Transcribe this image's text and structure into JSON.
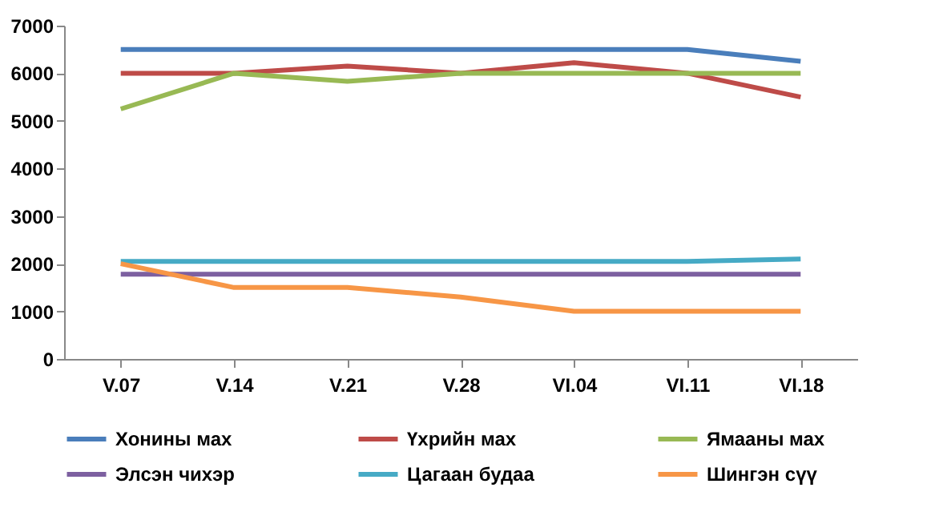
{
  "chart_data": {
    "type": "line",
    "categories": [
      "V.07",
      "V.14",
      "V.21",
      "V.28",
      "VI.04",
      "VI.11",
      "VI.18"
    ],
    "series": [
      {
        "name": "Хонины мах",
        "color": "#4a7ebb",
        "values": [
          6500,
          6500,
          6500,
          6500,
          6500,
          6500,
          6250
        ]
      },
      {
        "name": "Үхрийн мах",
        "color": "#be4b48",
        "values": [
          6000,
          6000,
          6150,
          6000,
          6220,
          6000,
          5500
        ]
      },
      {
        "name": "Ямааны мах",
        "color": "#98b954",
        "values": [
          5250,
          6000,
          5830,
          6000,
          6000,
          6000,
          6000
        ]
      },
      {
        "name": "Элсэн чихэр",
        "color": "#7d60a0",
        "values": [
          1780,
          1780,
          1780,
          1780,
          1780,
          1780,
          1780
        ]
      },
      {
        "name": "Цагаан будаа",
        "color": "#46aac5",
        "values": [
          2050,
          2050,
          2050,
          2050,
          2050,
          2050,
          2100
        ]
      },
      {
        "name": "Шингэн сүү",
        "color": "#f79646",
        "values": [
          2000,
          1500,
          1500,
          1300,
          1000,
          1000,
          1000
        ]
      }
    ],
    "ylim": [
      0,
      7000
    ],
    "yticks": [
      0,
      1000,
      2000,
      3000,
      4000,
      5000,
      6000,
      7000
    ],
    "grid": false,
    "legend": "bottom",
    "marker": "none",
    "line_style": "solid"
  }
}
